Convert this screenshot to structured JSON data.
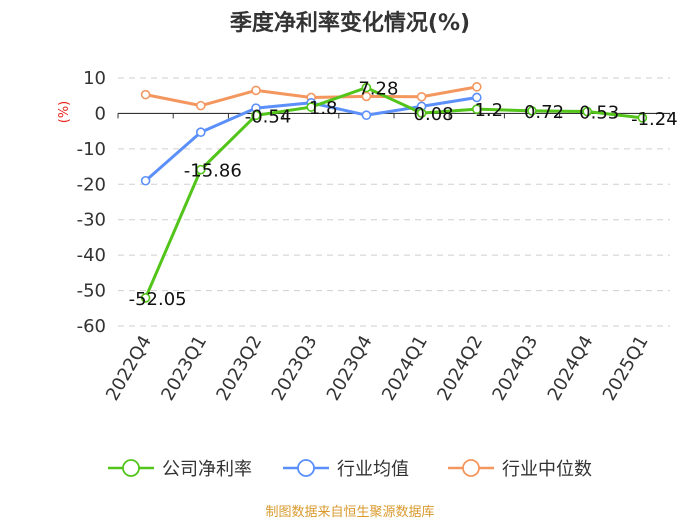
{
  "chart_data": {
    "type": "line",
    "title": "季度净利率变化情况(%)",
    "ylabel": "(%)",
    "categories": [
      "2022Q4",
      "2023Q1",
      "2023Q2",
      "2023Q3",
      "2023Q4",
      "2024Q1",
      "2024Q2",
      "2024Q3",
      "2024Q4",
      "2025Q1"
    ],
    "ylim": [
      -60,
      10
    ],
    "yticks": [
      10,
      0,
      -10,
      -20,
      -30,
      -40,
      -50,
      -60
    ],
    "grid": true,
    "legend_position": "bottom",
    "series": [
      {
        "name": "公司净利率",
        "color": "#52c41a",
        "values": [
          -52.05,
          -15.86,
          -0.54,
          1.8,
          7.28,
          0.08,
          1.2,
          0.72,
          0.53,
          -1.24
        ],
        "labels": [
          "-52.05",
          "-15.86",
          "-0.54",
          "1.8",
          "7.28",
          "0.08",
          "1.2",
          "0.72",
          "0.53",
          "-1.24"
        ]
      },
      {
        "name": "行业均值",
        "color": "#5b8ff9",
        "values": [
          -19.0,
          -5.3,
          1.5,
          3.0,
          -0.5,
          2.0,
          4.5,
          null,
          null,
          null
        ]
      },
      {
        "name": "行业中位数",
        "color": "#f4975e",
        "values": [
          5.3,
          2.2,
          6.5,
          4.5,
          4.8,
          4.7,
          7.5,
          null,
          null,
          null
        ]
      }
    ]
  },
  "footer": {
    "source": "制图数据来自恒生聚源数据库"
  }
}
